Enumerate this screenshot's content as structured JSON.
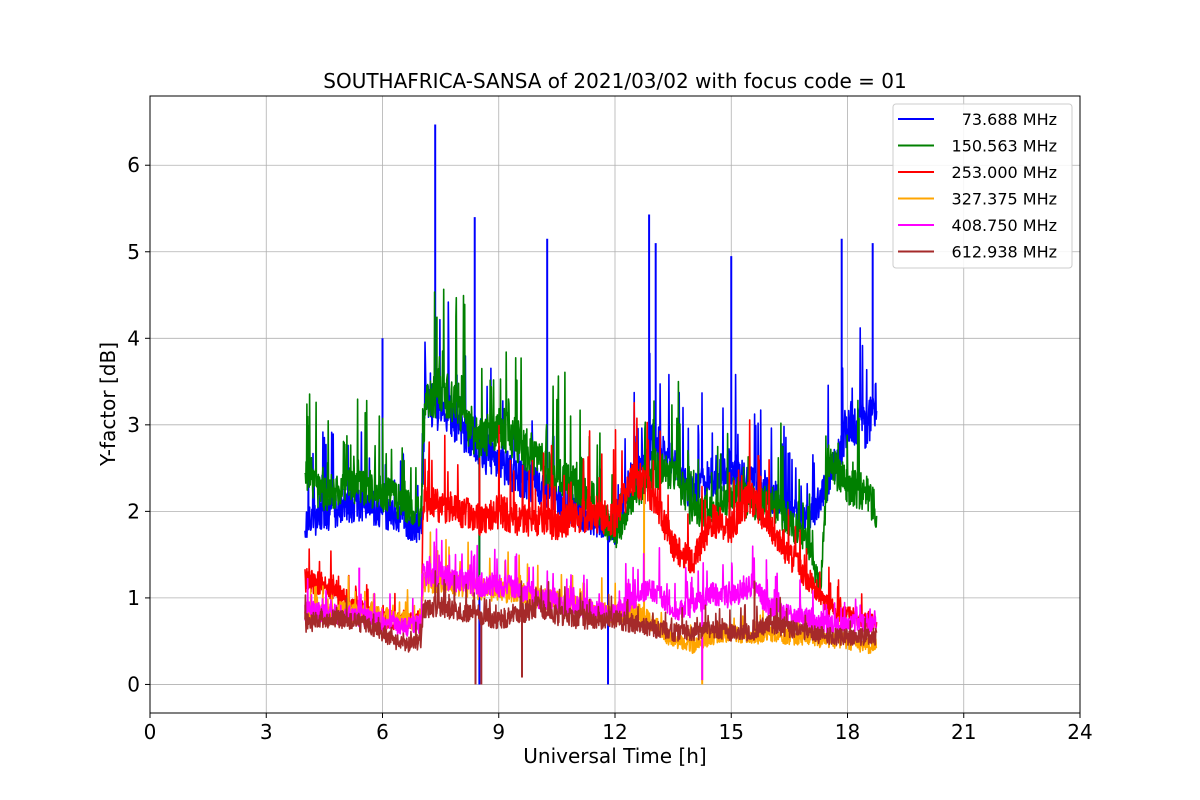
{
  "chart_data": {
    "type": "line",
    "title": "SOUTHAFRICA-SANSA of 2021/03/02 with focus code = 01",
    "xlabel": "Universal Time [h]",
    "ylabel": "Y-factor [dB]",
    "xlim": [
      0,
      24
    ],
    "ylim": [
      -0.33,
      6.8
    ],
    "xticks": [
      0,
      3,
      6,
      9,
      12,
      15,
      18,
      21,
      24
    ],
    "yticks": [
      0,
      1,
      2,
      3,
      4,
      5,
      6
    ],
    "grid": true,
    "legend_position": "top-right",
    "series": [
      {
        "name": "73.688 MHz",
        "color": "#0000ff",
        "x": [
          4.0,
          4.5,
          5.0,
          5.5,
          6.0,
          6.5,
          7.0,
          7.1,
          7.5,
          8.0,
          8.5,
          9.0,
          9.5,
          10.0,
          10.5,
          11.0,
          11.5,
          12.0,
          12.5,
          13.0,
          13.5,
          14.0,
          14.5,
          15.0,
          15.5,
          16.0,
          16.5,
          17.0,
          17.5,
          18.0,
          18.5,
          18.75
        ],
        "y": [
          1.85,
          1.95,
          2.05,
          2.1,
          2.0,
          1.9,
          1.8,
          3.3,
          3.2,
          3.0,
          2.7,
          2.6,
          2.4,
          2.3,
          2.1,
          2.0,
          1.9,
          1.8,
          2.4,
          2.8,
          2.5,
          2.2,
          2.4,
          2.5,
          2.3,
          2.2,
          2.0,
          1.9,
          2.3,
          3.0,
          3.0,
          3.3
        ],
        "spikes": [
          {
            "x": 6.0,
            "y": 4.0
          },
          {
            "x": 7.36,
            "y": 6.47
          },
          {
            "x": 8.38,
            "y": 5.4
          },
          {
            "x": 8.5,
            "y": 0.0
          },
          {
            "x": 10.25,
            "y": 5.15
          },
          {
            "x": 11.82,
            "y": 0.0
          },
          {
            "x": 12.88,
            "y": 5.43
          },
          {
            "x": 13.05,
            "y": 5.1
          },
          {
            "x": 15.0,
            "y": 4.95
          },
          {
            "x": 17.85,
            "y": 5.15
          },
          {
            "x": 18.65,
            "y": 5.1
          }
        ]
      },
      {
        "name": "150.563 MHz",
        "color": "#008000",
        "x": [
          4.0,
          4.5,
          5.0,
          5.5,
          6.0,
          6.5,
          7.0,
          7.1,
          7.5,
          8.0,
          8.5,
          9.0,
          9.5,
          10.0,
          10.5,
          11.0,
          11.5,
          12.0,
          12.5,
          13.0,
          13.5,
          14.0,
          14.5,
          15.0,
          15.5,
          16.0,
          16.5,
          17.0,
          17.3,
          17.5,
          18.0,
          18.5,
          18.75
        ],
        "y": [
          2.4,
          2.2,
          2.3,
          2.3,
          2.2,
          2.1,
          2.0,
          3.3,
          3.4,
          3.2,
          2.8,
          3.0,
          2.8,
          2.6,
          2.4,
          2.3,
          2.1,
          1.7,
          2.2,
          2.5,
          2.4,
          2.0,
          2.0,
          2.2,
          2.1,
          2.1,
          1.9,
          1.6,
          1.1,
          2.6,
          2.3,
          2.2,
          2.0
        ],
        "spikes": [
          {
            "x": 4.1,
            "y": 3.0
          },
          {
            "x": 7.4,
            "y": 4.25
          },
          {
            "x": 8.5,
            "y": 1.1
          }
        ]
      },
      {
        "name": "253.000 MHz",
        "color": "#ff0000",
        "x": [
          4.0,
          4.5,
          5.0,
          5.5,
          6.0,
          6.5,
          7.0,
          7.05,
          7.5,
          8.0,
          8.5,
          9.0,
          9.5,
          10.0,
          10.5,
          11.0,
          11.5,
          12.0,
          12.5,
          13.0,
          13.5,
          14.0,
          14.5,
          15.0,
          15.5,
          16.0,
          16.5,
          17.0,
          17.5,
          18.0,
          18.5,
          18.75
        ],
        "y": [
          1.2,
          1.15,
          1.0,
          0.85,
          0.75,
          0.72,
          0.75,
          2.1,
          2.05,
          2.0,
          1.9,
          2.0,
          1.9,
          1.9,
          1.85,
          1.95,
          1.95,
          1.9,
          2.4,
          2.2,
          1.6,
          1.4,
          1.9,
          1.8,
          2.2,
          1.8,
          1.5,
          1.2,
          0.9,
          0.8,
          0.75,
          0.72
        ],
        "spikes": [
          {
            "x": 12.55,
            "y": 2.8
          },
          {
            "x": 15.7,
            "y": 2.65
          }
        ]
      },
      {
        "name": "327.375 MHz",
        "color": "#ffa500",
        "x": [
          4.0,
          4.5,
          5.0,
          5.5,
          6.0,
          6.5,
          7.0,
          7.05,
          7.5,
          8.0,
          8.5,
          9.0,
          9.5,
          10.0,
          10.5,
          11.0,
          11.5,
          12.0,
          12.5,
          13.0,
          13.5,
          14.0,
          14.5,
          15.0,
          15.5,
          16.0,
          16.5,
          17.0,
          17.5,
          18.0,
          18.5,
          18.75
        ],
        "y": [
          0.8,
          0.82,
          0.85,
          0.8,
          0.78,
          0.75,
          0.72,
          1.2,
          1.2,
          1.15,
          1.1,
          1.1,
          1.05,
          1.0,
          0.95,
          0.9,
          0.85,
          0.8,
          0.85,
          0.7,
          0.5,
          0.45,
          0.55,
          0.6,
          0.55,
          0.6,
          0.55,
          0.55,
          0.5,
          0.5,
          0.45,
          0.45
        ],
        "spikes": [
          {
            "x": 12.75,
            "y": 2.2
          },
          {
            "x": 14.25,
            "y": 0.0
          }
        ]
      },
      {
        "name": "408.750 MHz",
        "color": "#ff00ff",
        "x": [
          4.0,
          4.5,
          5.0,
          5.5,
          6.0,
          6.5,
          7.0,
          7.05,
          7.5,
          8.0,
          8.5,
          9.0,
          9.5,
          10.0,
          10.5,
          11.0,
          11.5,
          12.0,
          12.5,
          13.0,
          13.5,
          14.0,
          14.5,
          15.0,
          15.5,
          16.0,
          16.5,
          17.0,
          17.5,
          18.0,
          18.5,
          18.75
        ],
        "y": [
          0.85,
          0.82,
          0.8,
          0.78,
          0.72,
          0.65,
          0.7,
          1.3,
          1.25,
          1.2,
          1.15,
          1.15,
          1.1,
          1.0,
          0.95,
          0.9,
          0.85,
          0.8,
          1.0,
          1.1,
          0.85,
          0.9,
          1.05,
          1.0,
          1.15,
          0.9,
          0.8,
          0.75,
          0.7,
          0.7,
          0.7,
          0.7
        ],
        "spikes": [
          {
            "x": 5.4,
            "y": 1.35
          },
          {
            "x": 14.25,
            "y": 0.05
          }
        ]
      },
      {
        "name": "612.938 MHz",
        "color": "#a52a2a",
        "x": [
          4.0,
          4.5,
          5.0,
          5.5,
          6.0,
          6.5,
          7.0,
          7.05,
          7.5,
          8.0,
          8.5,
          9.0,
          9.5,
          10.0,
          10.5,
          11.0,
          11.5,
          12.0,
          12.5,
          13.0,
          13.5,
          14.0,
          14.5,
          15.0,
          15.5,
          16.0,
          16.5,
          17.0,
          17.5,
          18.0,
          18.5,
          18.75
        ],
        "y": [
          0.7,
          0.75,
          0.75,
          0.7,
          0.6,
          0.45,
          0.5,
          0.85,
          0.9,
          0.85,
          0.8,
          0.75,
          0.8,
          0.9,
          0.8,
          0.75,
          0.75,
          0.75,
          0.7,
          0.65,
          0.6,
          0.6,
          0.65,
          0.6,
          0.6,
          0.7,
          0.65,
          0.6,
          0.55,
          0.55,
          0.55,
          0.55
        ],
        "spikes": [
          {
            "x": 8.4,
            "y": 0.0
          },
          {
            "x": 8.55,
            "y": 0.0
          },
          {
            "x": 9.6,
            "y": 0.08
          },
          {
            "x": 15.6,
            "y": 1.2
          }
        ]
      }
    ]
  }
}
